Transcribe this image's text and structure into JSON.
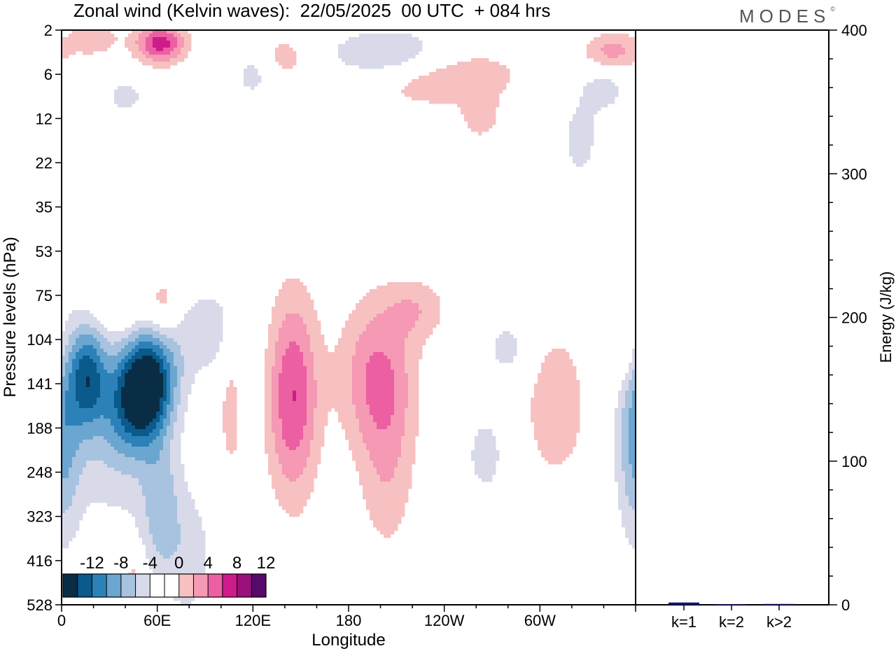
{
  "header": {
    "title": "Zonal wind (Kelvin waves):  22/05/2025  00 UTC  + 084 hrs",
    "brand": "MODES",
    "brand_mark": "©"
  },
  "colors": {
    "palette": [
      "#0a2d46",
      "#0a5a8c",
      "#2c82b8",
      "#6aa6cf",
      "#a8c3df",
      "#d8dae9",
      "#ffffff",
      "#ffffff",
      "#f7c1c1",
      "#f599b4",
      "#ec5fa2",
      "#cd1c8a",
      "#9b117b",
      "#560a6b"
    ],
    "positive_light": "#f7c1c1",
    "positive_mid": "#f599b4",
    "positive_strong": "#ec5fa2",
    "negative_light": "#d8dae9",
    "negative_mid": "#a8c3df",
    "negative_strong": "#6aa6cf",
    "negative_deep": "#2c82b8",
    "negative_darker": "#0a5a8c",
    "negative_darkest": "#0a2d46",
    "bar": "#15156b"
  },
  "chart_data": [
    {
      "type": "heatmap",
      "title": "Zonal wind (Kelvin waves):  22/05/2025  00 UTC  + 084 hrs",
      "xlabel": "Longitude",
      "ylabel": "Pressure levels (hPa)",
      "x_ticks": [
        "0",
        "60E",
        "120E",
        "180",
        "120W",
        "60W"
      ],
      "x_tick_degrees": [
        0,
        60,
        120,
        180,
        240,
        300
      ],
      "xlim": [
        0,
        360
      ],
      "y_ticks": [
        "2",
        "6",
        "12",
        "22",
        "35",
        "53",
        "75",
        "104",
        "141",
        "188",
        "248",
        "323",
        "416",
        "528"
      ],
      "colorbar": {
        "tick_labels": [
          "-12",
          "-8",
          "-4",
          "0",
          "4",
          "8",
          "12"
        ],
        "levels": [
          -14,
          -12,
          -10,
          -8,
          -6,
          -4,
          -2,
          0,
          2,
          4,
          6,
          8,
          10,
          12,
          14
        ]
      },
      "blobs": [
        {
          "lon": 52,
          "level": 8.1,
          "rlon": 18,
          "rlev": 1.2,
          "v": -15,
          "tilt": 0.35
        },
        {
          "lon": 16,
          "level": 7.8,
          "rlon": 12,
          "rlev": 1.2,
          "v": -9
        },
        {
          "lon": 34,
          "level": 8.9,
          "rlon": 30,
          "rlev": 2.2,
          "v": -4
        },
        {
          "lon": 62,
          "level": 10.8,
          "rlon": 12,
          "rlev": 1.6,
          "v": -4.5
        },
        {
          "lon": 80,
          "level": 11.9,
          "rlon": 16,
          "rlev": 1.6,
          "v": -3
        },
        {
          "lon": 92,
          "level": 6.8,
          "rlon": 22,
          "rlev": 1.1,
          "v": -3
        },
        {
          "lon": 145,
          "level": 8.3,
          "rlon": 16,
          "rlev": 2.3,
          "v": 8
        },
        {
          "lon": 106,
          "level": 8.6,
          "rlon": 7,
          "rlev": 1.5,
          "v": 3.2
        },
        {
          "lon": 198,
          "level": 7.8,
          "rlon": 24,
          "rlev": 1.7,
          "v": 6
        },
        {
          "lon": 204,
          "level": 10.0,
          "rlon": 18,
          "rlev": 2.0,
          "v": 3.3
        },
        {
          "lon": 223,
          "level": 6.3,
          "rlon": 20,
          "rlev": 0.7,
          "v": 3.2
        },
        {
          "lon": 310,
          "level": 8.5,
          "rlon": 22,
          "rlev": 1.9,
          "v": 3.3
        },
        {
          "lon": 266,
          "level": 9.6,
          "rlon": 13,
          "rlev": 1.0,
          "v": -3
        },
        {
          "lon": 280,
          "level": 7.2,
          "rlon": 14,
          "rlev": 0.7,
          "v": -3
        },
        {
          "lon": 360,
          "level": 9.3,
          "rlon": 12,
          "rlev": 2.2,
          "v": -6
        },
        {
          "lon": 352,
          "level": 7.2,
          "rlon": 10,
          "rlev": 0.8,
          "v": 3
        },
        {
          "lon": 40,
          "level": 6.2,
          "rlon": 22,
          "rlev": 0.7,
          "v": 3,
          "tilt": 0.6
        },
        {
          "lon": 65,
          "level": 6.3,
          "rlon": 9,
          "rlev": 0.7,
          "v": 3
        },
        {
          "lon": 62,
          "level": 0.3,
          "rlon": 16,
          "rlev": 0.45,
          "v": 9
        },
        {
          "lon": 20,
          "level": 0.2,
          "rlon": 16,
          "rlev": 0.4,
          "v": 3.5
        },
        {
          "lon": 208,
          "level": 0.6,
          "rlon": 40,
          "rlev": 0.6,
          "v": -6
        },
        {
          "lon": 235,
          "level": 1.0,
          "rlon": 50,
          "rlev": 0.7,
          "v": 5
        },
        {
          "lon": 345,
          "level": 0.5,
          "rlon": 18,
          "rlev": 0.45,
          "v": 5
        },
        {
          "lon": 325,
          "level": 2.5,
          "rlon": 12,
          "rlev": 0.9,
          "v": -3
        },
        {
          "lon": 340,
          "level": 1.3,
          "rlon": 16,
          "rlev": 0.6,
          "v": -3
        },
        {
          "lon": 140,
          "level": 0.6,
          "rlon": 16,
          "rlev": 0.5,
          "v": 3
        },
        {
          "lon": 120,
          "level": 1.0,
          "rlon": 12,
          "rlev": 0.6,
          "v": -2.8
        },
        {
          "lon": 40,
          "level": 1.5,
          "rlon": 14,
          "rlev": 0.4,
          "v": -2.8
        },
        {
          "lon": 263,
          "level": 2.0,
          "rlon": 12,
          "rlev": 0.5,
          "v": 3
        },
        {
          "lon": 45,
          "level": 12.4,
          "rlon": 7,
          "rlev": 0.6,
          "v": 3
        }
      ]
    },
    {
      "type": "bar",
      "ylabel": "Energy (J/kg)",
      "categories": [
        "k=1",
        "k=2",
        "k>2"
      ],
      "values": [
        1.6,
        0.4,
        0.6
      ],
      "y_ticks": [
        "0",
        "100",
        "200",
        "300",
        "400"
      ],
      "ylim": [
        0,
        400
      ]
    }
  ]
}
